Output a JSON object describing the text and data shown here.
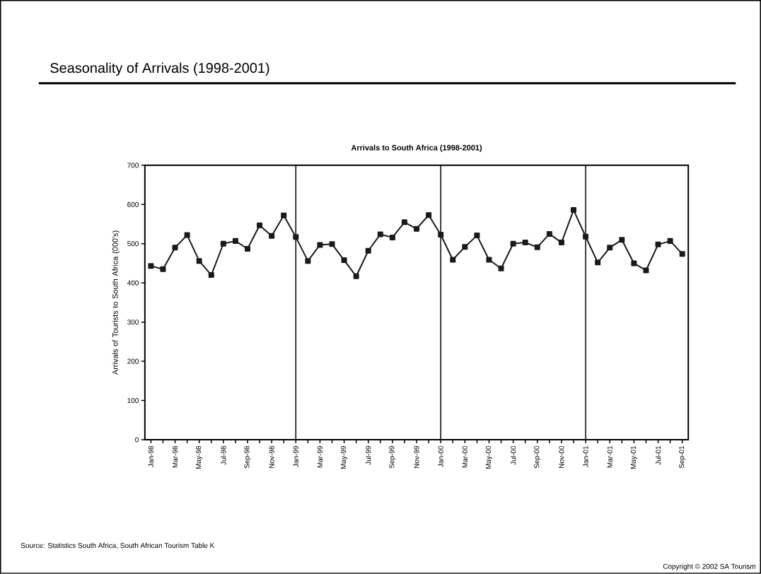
{
  "chart_data": {
    "type": "line",
    "title": "Seasonality of Arrivals (1998-2001)",
    "subtitle": "Arrivals to South Africa (1998-2001)",
    "ylabel": "Arrivals of Tourists to South Africa (000's)",
    "categories": [
      "Jan-98",
      null,
      "Mar-98",
      null,
      "May-98",
      null,
      "Jul-98",
      null,
      "Sep-98",
      null,
      "Nov-98",
      null,
      "Jan-99",
      null,
      "Mar-99",
      null,
      "May-99",
      null,
      "Jul-99",
      null,
      "Sep-99",
      null,
      "Nov-99",
      null,
      "Jan-00",
      null,
      "Mar-00",
      null,
      "May-00",
      null,
      "Jul-00",
      null,
      "Sep-00",
      null,
      "Nov-00",
      null,
      "Jan-01",
      null,
      "Mar-01",
      null,
      "May-01",
      null,
      "Jul-01",
      null,
      "Sep-01"
    ],
    "series": [
      {
        "color": "#1a1a1a",
        "values": [
          443,
          435,
          490,
          522,
          456,
          420,
          500,
          507,
          487,
          547,
          520,
          572,
          517,
          456,
          497,
          499,
          458,
          417,
          482,
          524,
          516,
          555,
          538,
          573,
          523,
          459,
          492,
          521,
          459,
          437,
          500,
          503,
          491,
          525,
          503,
          586,
          518,
          452,
          490,
          510,
          450,
          432,
          498,
          507,
          474
        ]
      }
    ],
    "ylim": [
      0,
      700
    ],
    "yticks": [
      0,
      100,
      200,
      300,
      400,
      500,
      600,
      700
    ],
    "marker": "square",
    "line_style": "solid",
    "grid": false,
    "ref_lines": [
      {
        "axis": "x",
        "value": "Jan-99",
        "color": "#000000"
      },
      {
        "axis": "x",
        "value": "Jan-00",
        "color": "#000000"
      },
      {
        "axis": "x",
        "value": "Jan-01",
        "color": "#000000"
      }
    ],
    "annotations": [
      "Source: Statistics South Africa, South African Tourism Table K",
      "Copyright © 2002 SA Tourism"
    ]
  }
}
